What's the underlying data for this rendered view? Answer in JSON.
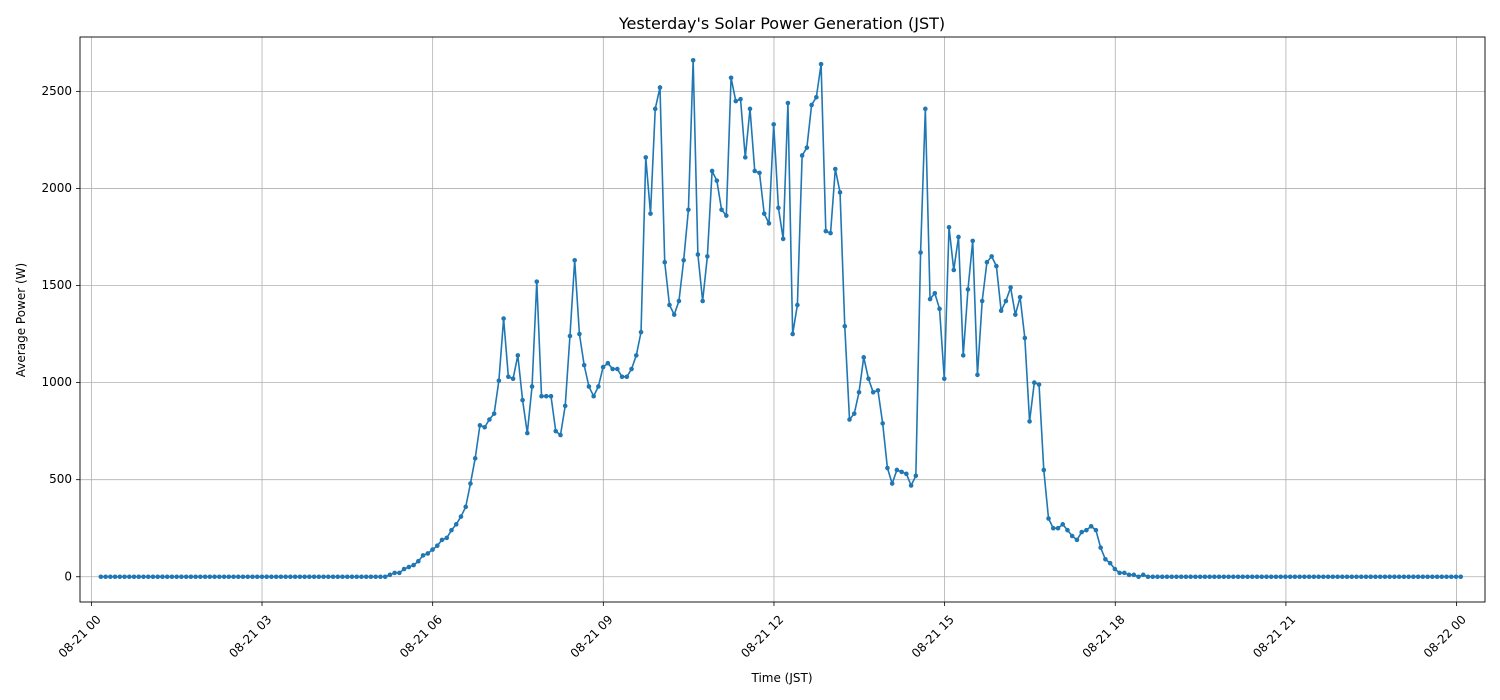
{
  "chart_data": {
    "type": "line",
    "title": "Yesterday's Solar Power Generation (JST)",
    "xlabel": "Time (JST)",
    "ylabel": "Average Power (W)",
    "x_unit": "hours",
    "xlim": [
      -0.2,
      24.5
    ],
    "ylim": [
      -130,
      2780
    ],
    "x_ticks": [
      0,
      3,
      6,
      9,
      12,
      15,
      18,
      21,
      24
    ],
    "x_tick_labels": [
      "08-21 00",
      "08-21 03",
      "08-21 06",
      "08-21 09",
      "08-21 12",
      "08-21 15",
      "08-21 18",
      "08-21 21",
      "08-22 00"
    ],
    "y_ticks": [
      0,
      500,
      1000,
      1500,
      2000,
      2500
    ],
    "y_tick_labels": [
      "0",
      "500",
      "1000",
      "1500",
      "2000",
      "2500"
    ],
    "grid": true,
    "legend": false,
    "series": [
      {
        "color": "#1f77b4",
        "marker": "circle",
        "x_start": 0.1667,
        "x_step": 0.0833,
        "values": [
          0,
          0,
          0,
          0,
          0,
          0,
          0,
          0,
          0,
          0,
          0,
          0,
          0,
          0,
          0,
          0,
          0,
          0,
          0,
          0,
          0,
          0,
          0,
          0,
          0,
          0,
          0,
          0,
          0,
          0,
          0,
          0,
          0,
          0,
          0,
          0,
          0,
          0,
          0,
          0,
          0,
          0,
          0,
          0,
          0,
          0,
          0,
          0,
          0,
          0,
          0,
          0,
          0,
          0,
          0,
          0,
          0,
          0,
          0,
          0,
          0,
          10,
          20,
          20,
          40,
          50,
          60,
          80,
          110,
          120,
          140,
          160,
          190,
          200,
          240,
          270,
          310,
          360,
          480,
          610,
          780,
          770,
          810,
          840,
          1010,
          1330,
          1030,
          1020,
          1140,
          910,
          740,
          980,
          1520,
          930,
          930,
          930,
          750,
          730,
          880,
          1240,
          1630,
          1250,
          1090,
          980,
          930,
          980,
          1080,
          1100,
          1070,
          1070,
          1030,
          1030,
          1070,
          1140,
          1260,
          2160,
          1870,
          2410,
          2520,
          1620,
          1400,
          1350,
          1420,
          1630,
          1890,
          2660,
          1660,
          1420,
          1650,
          2090,
          2040,
          1890,
          1860,
          2570,
          2450,
          2460,
          2160,
          2410,
          2090,
          2080,
          1870,
          1820,
          2330,
          1900,
          1740,
          2440,
          1250,
          1400,
          2170,
          2210,
          2430,
          2470,
          2640,
          1780,
          1770,
          2100,
          1980,
          1290,
          810,
          840,
          950,
          1130,
          1020,
          950,
          960,
          790,
          560,
          480,
          550,
          540,
          530,
          470,
          520,
          1670,
          2410,
          1430,
          1460,
          1380,
          1020,
          1800,
          1580,
          1750,
          1140,
          1480,
          1730,
          1040,
          1420,
          1620,
          1650,
          1600,
          1370,
          1420,
          1490,
          1350,
          1440,
          1230,
          800,
          1000,
          990,
          550,
          300,
          250,
          250,
          270,
          240,
          210,
          190,
          230,
          240,
          260,
          240,
          150,
          90,
          70,
          40,
          20,
          20,
          10,
          10,
          0,
          10,
          0,
          0,
          0,
          0,
          0,
          0,
          0,
          0,
          0,
          0,
          0,
          0,
          0,
          0,
          0,
          0,
          0,
          0,
          0,
          0,
          0,
          0,
          0,
          0,
          0,
          0,
          0,
          0,
          0,
          0,
          0,
          0,
          0,
          0,
          0,
          0,
          0,
          0,
          0,
          0,
          0,
          0,
          0,
          0,
          0,
          0,
          0,
          0,
          0,
          0,
          0,
          0,
          0,
          0,
          0,
          0,
          0,
          0,
          0,
          0,
          0,
          0,
          0,
          0,
          0,
          0,
          0
        ]
      }
    ]
  }
}
